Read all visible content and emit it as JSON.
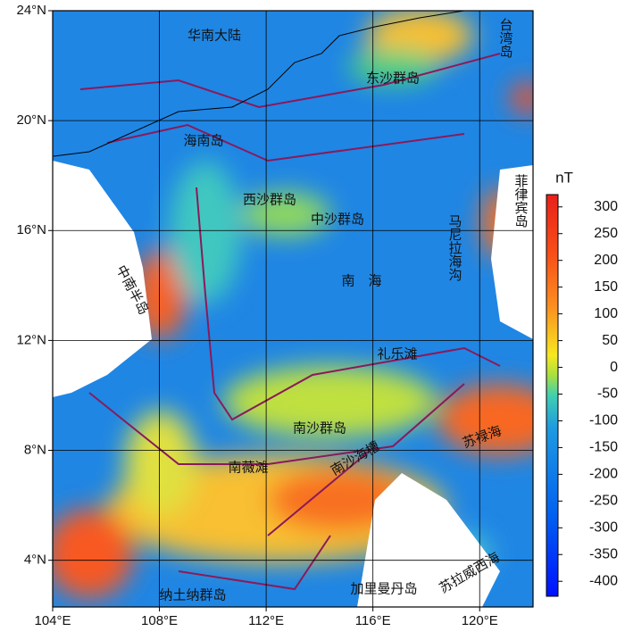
{
  "map": {
    "lon_ticks": [
      {
        "value": 104,
        "label": "104°E"
      },
      {
        "value": 108,
        "label": "108°E"
      },
      {
        "value": 112,
        "label": "112°E"
      },
      {
        "value": 116,
        "label": "116°E"
      },
      {
        "value": 120,
        "label": "120°E"
      }
    ],
    "lat_ticks": [
      {
        "value": 4,
        "label": "4°N"
      },
      {
        "value": 8,
        "label": "8°N"
      },
      {
        "value": 12,
        "label": "12°N"
      },
      {
        "value": 16,
        "label": "16°N"
      },
      {
        "value": 20,
        "label": "20°N"
      },
      {
        "value": 24,
        "label": "24°N"
      }
    ],
    "xlim": [
      104,
      122
    ],
    "ylim": [
      2.3,
      24
    ],
    "places": [
      "华南大陆",
      "台湾岛",
      "东沙群岛",
      "海南岛",
      "西沙群岛",
      "中沙群岛",
      "菲律宾岛",
      "马尼拉海沟",
      "中南半岛",
      "南　海",
      "礼乐滩",
      "南沙群岛",
      "南薇滩",
      "南沙海槽",
      "苏禄海",
      "纳土纳群岛",
      "加里曼丹岛",
      "苏拉威西海"
    ]
  },
  "colorbar": {
    "label": "nT",
    "lim": [
      -428,
      323
    ],
    "ticks": [
      300,
      250,
      200,
      150,
      100,
      50,
      0,
      -50,
      -100,
      -150,
      -200,
      -250,
      -300,
      -350,
      -400
    ]
  }
}
